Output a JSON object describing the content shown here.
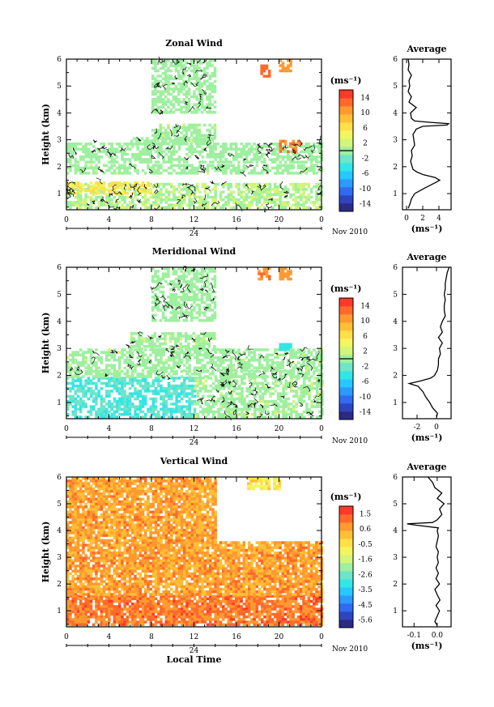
{
  "chart_data": {
    "type": "heatmap",
    "date_label": "Nov 2010",
    "day_label": "24",
    "xlabel_local": "Local Time",
    "colorbar_unit": "(ms⁻¹)",
    "profile_unit": "(ms⁻¹)",
    "profile_title": "Average",
    "x_ticks": [
      "0",
      "4",
      "8",
      "12",
      "16",
      "20",
      "0"
    ],
    "y_ticks": [
      "1",
      "2",
      "3",
      "4",
      "5",
      "6"
    ],
    "ylabel": "Height (km)",
    "ylim": [
      0.4,
      6.0
    ],
    "xlim": [
      0,
      24
    ],
    "panels": [
      {
        "title": "Zonal Wind",
        "colorbar_ticks": [
          "14",
          "10",
          "6",
          "2",
          "-2",
          "-6",
          "-10",
          "-14"
        ],
        "cmap_range": [
          -16,
          16
        ],
        "base_color": "#6fe4c8",
        "contour_level": 0,
        "regions": [
          {
            "x": [
              0,
              24
            ],
            "y": [
              0.45,
              1.4
            ],
            "v": 1.0
          },
          {
            "x": [
              0,
              8
            ],
            "y": [
              1.05,
              1.45
            ],
            "v": 5.5
          },
          {
            "x": [
              0,
              24
            ],
            "y": [
              1.8,
              2.1
            ],
            "v": 0.5
          },
          {
            "x": [
              0,
              24
            ],
            "y": [
              2.2,
              2.9
            ],
            "v": 0.3
          },
          {
            "x": [
              6,
              14
            ],
            "y": [
              2.9,
              3.1
            ],
            "v": 0.4
          },
          {
            "x": [
              8,
              14
            ],
            "y": [
              3.0,
              3.6
            ],
            "v": 0.6
          },
          {
            "x": [
              8,
              14
            ],
            "y": [
              4.0,
              6.0
            ],
            "v": 0.3
          },
          {
            "x": [
              18,
              19
            ],
            "y": [
              5.4,
              5.8
            ],
            "v": 12.5
          },
          {
            "x": [
              20,
              21
            ],
            "y": [
              5.6,
              6.0
            ],
            "v": 11.0
          },
          {
            "x": [
              20,
              22
            ],
            "y": [
              2.6,
              3.0
            ],
            "v": 12.0
          }
        ],
        "profile": {
          "xlim": [
            -0.5,
            5.5
          ],
          "x_ticks": [
            "0",
            "2",
            "4"
          ],
          "x_tick_values": [
            0,
            2,
            4
          ],
          "height": [
            0.45,
            0.6,
            0.8,
            1.0,
            1.2,
            1.4,
            1.5,
            1.6,
            1.7,
            1.8,
            1.9,
            2.0,
            2.2,
            2.4,
            2.6,
            2.8,
            3.0,
            3.2,
            3.4,
            3.5,
            3.55,
            3.6,
            3.65,
            3.7,
            3.8,
            4.0,
            4.2,
            4.4,
            4.6,
            4.8,
            5.0,
            5.2,
            5.4,
            5.6,
            5.8,
            6.0
          ],
          "value": [
            0.2,
            0.4,
            0.6,
            1.0,
            2.2,
            3.5,
            4.1,
            3.5,
            2.1,
            1.3,
            0.8,
            0.7,
            0.5,
            0.7,
            0.6,
            1.0,
            0.9,
            0.8,
            1.2,
            2.0,
            5.0,
            5.2,
            3.0,
            1.0,
            0.6,
            0.5,
            1.2,
            0.3,
            0.6,
            0.2,
            0.4,
            0.3,
            0.6,
            0.2,
            0.3,
            0.2
          ]
        }
      },
      {
        "title": "Meridional Wind",
        "colorbar_ticks": [
          "14",
          "10",
          "6",
          "2",
          "-2",
          "-6",
          "-10",
          "-14"
        ],
        "cmap_range": [
          -16,
          16
        ],
        "base_color": "#6fe4c8",
        "contour_level": 0,
        "regions": [
          {
            "x": [
              0,
              12
            ],
            "y": [
              0.45,
              1.95
            ],
            "v": -3.2
          },
          {
            "x": [
              12,
              24
            ],
            "y": [
              0.45,
              1.95
            ],
            "v": 0.6
          },
          {
            "x": [
              0,
              24
            ],
            "y": [
              1.95,
              2.2
            ],
            "v": 0.4
          },
          {
            "x": [
              0,
              24
            ],
            "y": [
              2.2,
              3.0
            ],
            "v": 0.5
          },
          {
            "x": [
              6,
              14
            ],
            "y": [
              3.0,
              3.6
            ],
            "v": 0.6
          },
          {
            "x": [
              8,
              14
            ],
            "y": [
              4.0,
              6.0
            ],
            "v": 0.3
          },
          {
            "x": [
              20,
              21
            ],
            "y": [
              3.0,
              3.2
            ],
            "v": -4.0
          },
          {
            "x": [
              18,
              19
            ],
            "y": [
              5.6,
              6.0
            ],
            "v": 11.5
          },
          {
            "x": [
              20,
              21
            ],
            "y": [
              5.6,
              6.0
            ],
            "v": 11.0
          }
        ],
        "profile": {
          "xlim": [
            -3.5,
            1.5
          ],
          "x_ticks": [
            "-2",
            "0"
          ],
          "x_tick_values": [
            -2,
            0
          ],
          "height": [
            0.45,
            0.6,
            0.8,
            1.0,
            1.2,
            1.4,
            1.6,
            1.7,
            1.8,
            1.9,
            2.0,
            2.2,
            2.4,
            2.6,
            2.8,
            3.0,
            3.2,
            3.4,
            3.6,
            3.8,
            4.0,
            4.2,
            4.4,
            4.6,
            4.8,
            5.0,
            5.2,
            5.4,
            5.6,
            5.8,
            6.0
          ],
          "value": [
            0.0,
            0.1,
            -0.4,
            -0.7,
            -1.1,
            -1.4,
            -1.9,
            -2.8,
            -1.6,
            -0.6,
            -0.2,
            0.1,
            0.2,
            0.2,
            0.4,
            0.3,
            0.6,
            0.2,
            0.6,
            0.4,
            0.6,
            0.9,
            0.8,
            0.8,
            0.9,
            0.8,
            0.9,
            0.9,
            1.0,
            1.1,
            1.3
          ]
        }
      },
      {
        "title": "Vertical Wind",
        "colorbar_ticks": [
          "1.5",
          "0.6",
          "-0.5",
          "-1.6",
          "-2.6",
          "-3.5",
          "-4.5",
          "-5.6"
        ],
        "cmap_range": [
          -6.0,
          2.0
        ],
        "base_color": "#ffcf3e",
        "contour_level": null,
        "regions": [
          {
            "x": [
              0,
              24
            ],
            "y": [
              0.45,
              1.6
            ],
            "v": 1.0
          },
          {
            "x": [
              0,
              24
            ],
            "y": [
              1.6,
              3.6
            ],
            "v": 0.55
          },
          {
            "x": [
              0,
              14
            ],
            "y": [
              3.6,
              6.0
            ],
            "v": 0.5
          },
          {
            "x": [
              17,
              20
            ],
            "y": [
              5.6,
              6.0
            ],
            "v": -0.5
          }
        ],
        "profile": {
          "xlim": [
            -0.15,
            0.06
          ],
          "x_ticks": [
            "-0.1",
            "0.0"
          ],
          "x_tick_values": [
            -0.1,
            0.0
          ],
          "height": [
            0.45,
            0.6,
            0.8,
            1.0,
            1.2,
            1.4,
            1.6,
            1.8,
            2.0,
            2.2,
            2.4,
            2.6,
            2.8,
            3.0,
            3.2,
            3.4,
            3.6,
            3.8,
            4.0,
            4.1,
            4.2,
            4.25,
            4.3,
            4.4,
            4.6,
            4.8,
            5.0,
            5.2,
            5.4,
            5.6,
            5.8,
            6.0
          ],
          "value": [
            0.0,
            -0.01,
            0.0,
            0.01,
            -0.005,
            0.012,
            0.0,
            -0.01,
            0.01,
            -0.005,
            0.005,
            -0.005,
            0.005,
            0.0,
            0.005,
            -0.005,
            0.0,
            0.005,
            0.0,
            0.005,
            -0.09,
            -0.13,
            -0.02,
            0.0,
            0.02,
            0.01,
            0.03,
            0.0,
            0.02,
            -0.01,
            -0.02,
            -0.04
          ]
        }
      }
    ]
  },
  "palette": [
    "#2b2a84",
    "#2e45c0",
    "#2f6cf0",
    "#2b9bff",
    "#27c7ff",
    "#33e6e6",
    "#6fe4c8",
    "#9fefa0",
    "#d2f57a",
    "#f2f560",
    "#ffe048",
    "#ffbf36",
    "#ff9930",
    "#ff6a2a",
    "#ff3a2a"
  ]
}
